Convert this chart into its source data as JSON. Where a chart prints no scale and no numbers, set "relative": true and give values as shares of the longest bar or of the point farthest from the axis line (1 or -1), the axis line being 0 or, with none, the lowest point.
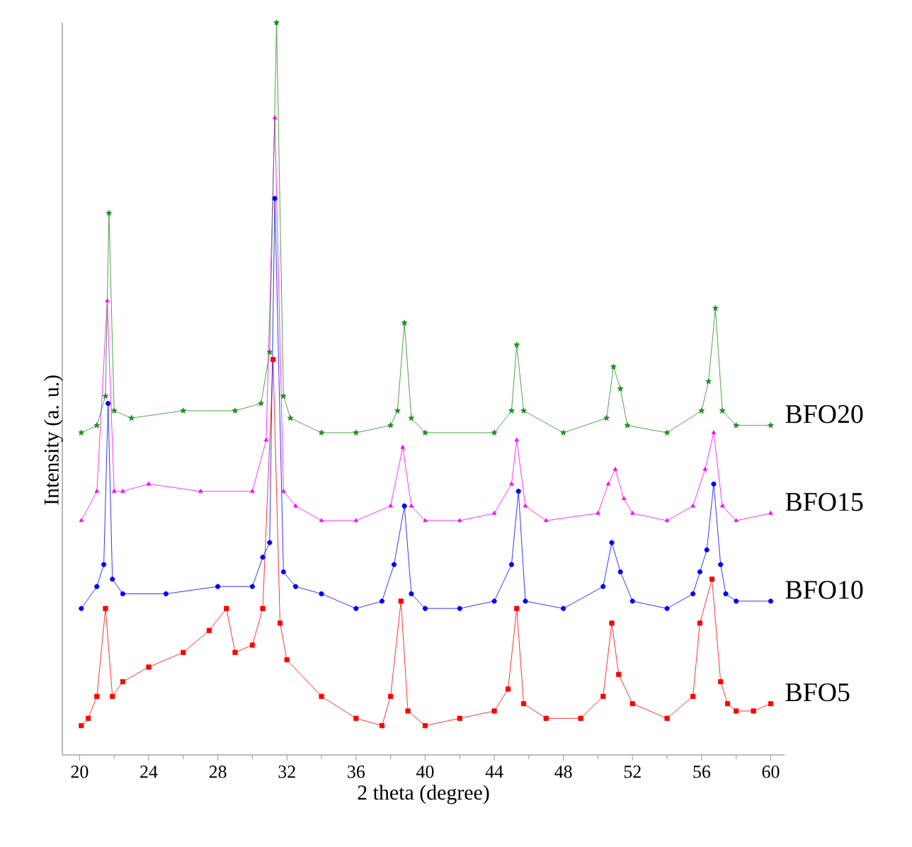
{
  "chart_data": {
    "type": "line",
    "xlabel": "2 theta (degree)",
    "ylabel": "Intensity (a. u.)",
    "relative": true,
    "tick_labels": "x",
    "line_style": "solid",
    "xlim": [
      19,
      60.8
    ],
    "xticks": [
      20,
      24,
      28,
      32,
      36,
      40,
      44,
      48,
      52,
      56,
      60
    ],
    "series": [
      {
        "name": "BFO5",
        "color": "#ff0000",
        "marker": "square",
        "x": [
          20.1,
          20.5,
          21.0,
          21.5,
          21.9,
          22.5,
          24,
          26,
          27.5,
          28.5,
          29,
          30,
          30.6,
          31.2,
          31.6,
          32,
          34,
          36,
          37.5,
          38,
          38.6,
          39,
          40,
          42,
          44,
          44.8,
          45.3,
          45.7,
          47,
          49,
          50.3,
          50.8,
          51.2,
          52,
          54,
          55.5,
          55.9,
          56.6,
          57.1,
          57.5,
          58,
          59,
          60
        ],
        "values": [
          0.04,
          0.05,
          0.08,
          0.2,
          0.08,
          0.1,
          0.12,
          0.14,
          0.17,
          0.2,
          0.14,
          0.15,
          0.2,
          0.54,
          0.18,
          0.13,
          0.08,
          0.05,
          0.04,
          0.08,
          0.21,
          0.06,
          0.04,
          0.05,
          0.06,
          0.09,
          0.2,
          0.07,
          0.05,
          0.05,
          0.08,
          0.18,
          0.11,
          0.07,
          0.05,
          0.08,
          0.18,
          0.24,
          0.1,
          0.07,
          0.06,
          0.06,
          0.07
        ]
      },
      {
        "name": "BFO10",
        "color": "#0000ff",
        "marker": "circle",
        "x": [
          20.1,
          21,
          21.4,
          21.65,
          21.9,
          22.5,
          25,
          28,
          30,
          30.6,
          31.0,
          31.3,
          31.8,
          32.5,
          34,
          36,
          37.5,
          38.2,
          38.8,
          39.2,
          40,
          42,
          44,
          45.0,
          45.4,
          45.8,
          48,
          50.3,
          50.8,
          51.3,
          52,
          54,
          55.5,
          55.9,
          56.3,
          56.7,
          57.1,
          57.4,
          58,
          60
        ],
        "values": [
          0.2,
          0.23,
          0.26,
          0.48,
          0.24,
          0.22,
          0.22,
          0.23,
          0.23,
          0.27,
          0.29,
          0.76,
          0.25,
          0.23,
          0.22,
          0.2,
          0.21,
          0.26,
          0.34,
          0.22,
          0.2,
          0.2,
          0.21,
          0.26,
          0.36,
          0.21,
          0.2,
          0.23,
          0.29,
          0.25,
          0.21,
          0.2,
          0.22,
          0.25,
          0.28,
          0.37,
          0.26,
          0.22,
          0.21,
          0.21
        ]
      },
      {
        "name": "BFO15",
        "color": "#ff00ff",
        "marker": "triangle",
        "x": [
          20.1,
          21,
          21.6,
          22.0,
          22.5,
          24,
          27,
          30,
          30.8,
          31.3,
          31.8,
          32.5,
          34,
          36,
          38,
          38.7,
          39.2,
          40,
          42,
          44,
          45.0,
          45.3,
          45.8,
          47,
          50,
          50.6,
          51.0,
          51.5,
          52,
          54,
          55.5,
          56.2,
          56.7,
          57.2,
          58,
          60
        ],
        "values": [
          0.32,
          0.36,
          0.62,
          0.36,
          0.36,
          0.37,
          0.36,
          0.36,
          0.43,
          0.87,
          0.36,
          0.34,
          0.32,
          0.32,
          0.34,
          0.42,
          0.34,
          0.32,
          0.32,
          0.33,
          0.37,
          0.43,
          0.34,
          0.32,
          0.33,
          0.37,
          0.39,
          0.35,
          0.33,
          0.32,
          0.34,
          0.39,
          0.44,
          0.34,
          0.32,
          0.33
        ]
      },
      {
        "name": "BFO20",
        "color": "#228b22",
        "marker": "star",
        "x": [
          20.1,
          21,
          21.5,
          21.7,
          22.0,
          23,
          26,
          29,
          30.5,
          31.0,
          31.4,
          31.8,
          32.2,
          34,
          36,
          38,
          38.4,
          38.8,
          39.2,
          40,
          44,
          45.0,
          45.3,
          45.7,
          48,
          50.5,
          50.9,
          51.3,
          51.7,
          54,
          56.0,
          56.4,
          56.8,
          57.2,
          58,
          60
        ],
        "values": [
          0.44,
          0.45,
          0.49,
          0.74,
          0.47,
          0.46,
          0.47,
          0.47,
          0.48,
          0.55,
          1.0,
          0.49,
          0.46,
          0.44,
          0.44,
          0.45,
          0.47,
          0.59,
          0.46,
          0.44,
          0.44,
          0.47,
          0.56,
          0.47,
          0.44,
          0.46,
          0.53,
          0.5,
          0.45,
          0.44,
          0.47,
          0.51,
          0.61,
          0.47,
          0.45,
          0.45
        ]
      }
    ]
  }
}
